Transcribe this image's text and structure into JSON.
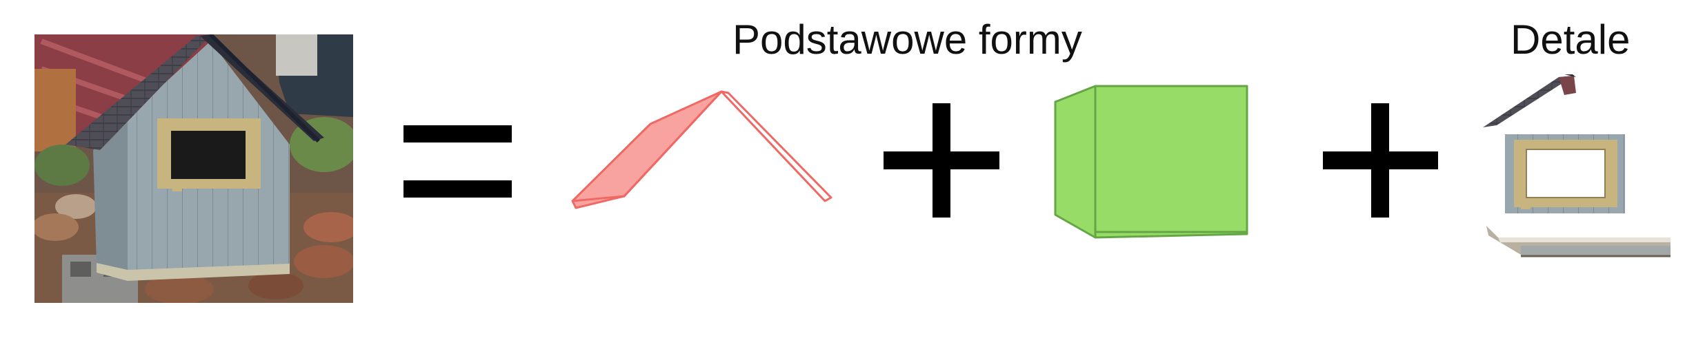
{
  "labels": {
    "basic_forms": "Podstawowe formy",
    "details": "Detale"
  },
  "colors": {
    "roof_fill": "#F8A3A0",
    "roof_stroke": "#F06863",
    "cube_fill": "#98DC68",
    "cube_stroke": "#66A545",
    "operator": "#000000",
    "siding": "#8F9EA6",
    "trim": "#C7B47E",
    "shingles": "#4A4A52"
  },
  "icons": [
    "equals-icon",
    "plus-icon",
    "plus-icon"
  ]
}
